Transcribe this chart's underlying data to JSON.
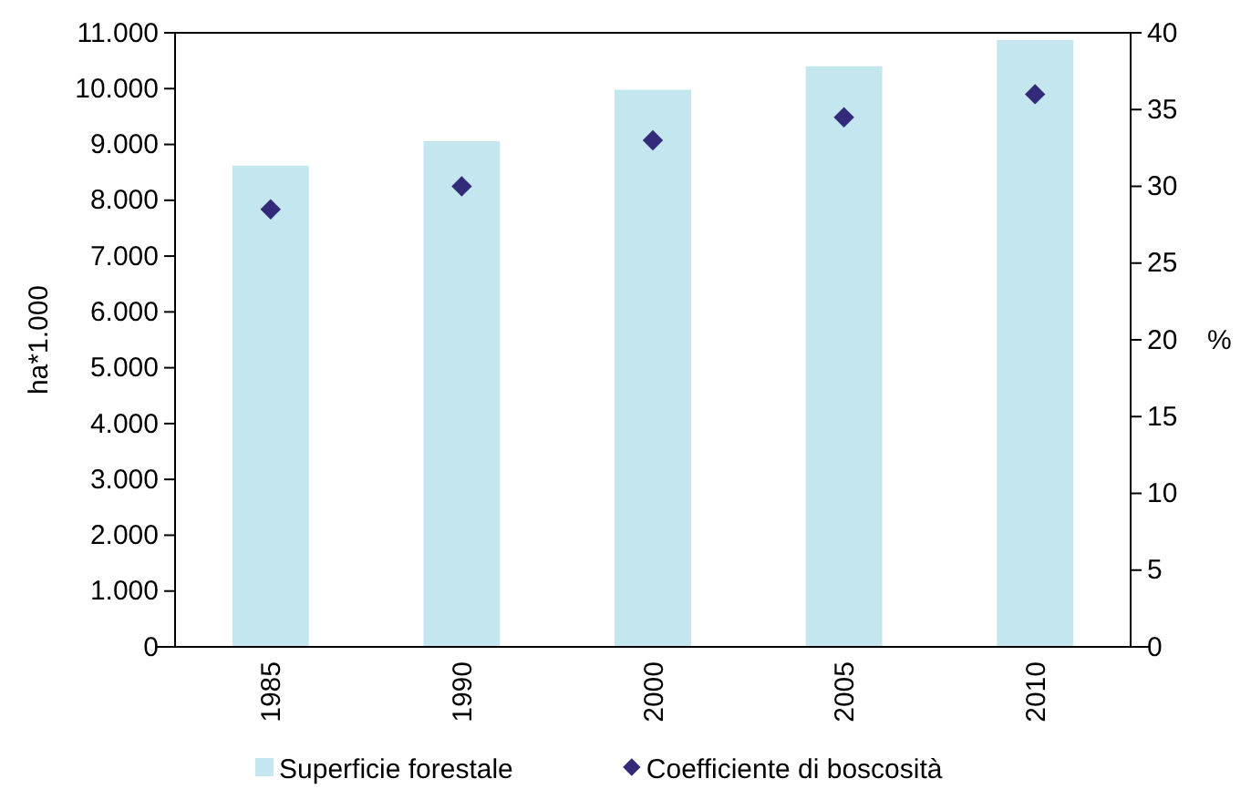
{
  "chart_data": {
    "type": "bar",
    "ylabel": "ha*1.000",
    "y2label": "%",
    "categories": [
      "1985",
      "1990",
      "2000",
      "2005",
      "2010"
    ],
    "series": [
      {
        "name": "Superficie forestale",
        "color": "#c3e6ef",
        "values": [
          8620,
          9060,
          9980,
          10400,
          10870
        ]
      },
      {
        "name": "Coefficiente di boscosità",
        "type": "scatter",
        "axis": "y2",
        "marker": "diamond",
        "color": "#332a7a",
        "values": [
          28.5,
          30.0,
          33.0,
          34.5,
          36.0
        ]
      }
    ],
    "ylim": [
      0,
      11000
    ],
    "yticks": [
      0,
      {
        "value": 1000,
        "label": "1.000"
      },
      {
        "value": 2000,
        "label": "2.000"
      },
      {
        "value": 3000,
        "label": "3.000"
      },
      {
        "value": 4000,
        "label": "4.000"
      },
      {
        "value": 5000,
        "label": "5.000"
      },
      {
        "value": 6000,
        "label": "6.000"
      },
      {
        "value": 7000,
        "label": "7.000"
      },
      {
        "value": 8000,
        "label": "8.000"
      },
      {
        "value": 9000,
        "label": "9.000"
      },
      {
        "value": 10000,
        "label": "10.000"
      },
      {
        "value": 11000,
        "label": "11.000"
      }
    ],
    "y2lim": [
      0,
      40
    ],
    "y2ticks": [
      0,
      5,
      10,
      15,
      20,
      25,
      30,
      35,
      40
    ],
    "legend": "bottom"
  }
}
